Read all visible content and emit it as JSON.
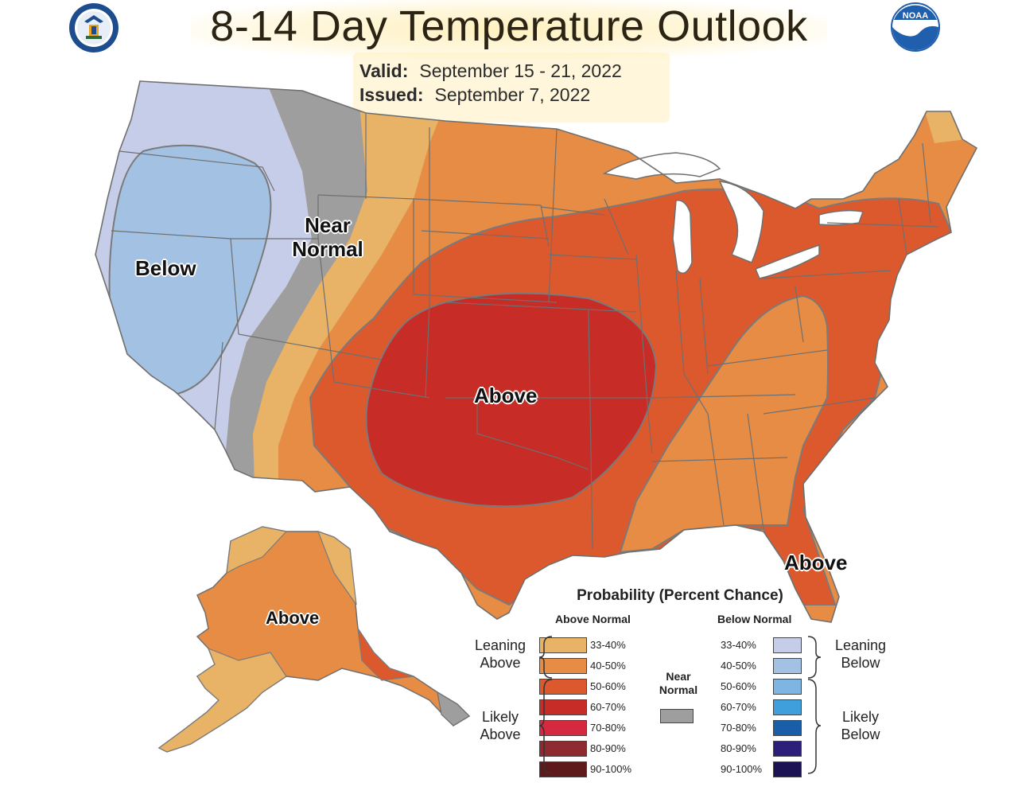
{
  "header": {
    "title": "8-14 Day Temperature Outlook",
    "valid_label": "Valid:",
    "valid_value": "September 15 - 21, 2022",
    "issued_label": "Issued:",
    "issued_value": "September 7, 2022",
    "logo_left": "commerce-seal-logo",
    "logo_right": "noaa-logo",
    "noaa_text": "NOAA"
  },
  "map": {
    "labels": {
      "below": "Below",
      "near_normal_1": "Near",
      "near_normal_2": "Normal",
      "above_center": "Above",
      "above_florida": "Above",
      "above_alaska": "Above"
    }
  },
  "colors": {
    "above_33_40": "#e8b367",
    "above_40_50": "#e68c45",
    "above_50_60": "#dc592e",
    "above_60_70": "#c72c27",
    "above_70_80": "#d4293f",
    "above_80_90": "#8e2b30",
    "above_90_100": "#5e1a1a",
    "near_normal": "#9e9e9e",
    "below_33_40": "#c5cde9",
    "below_40_50": "#a3c1e2",
    "below_50_60": "#7fb5e3",
    "below_60_70": "#3f9fdd",
    "below_70_80": "#1a5da8",
    "below_80_90": "#2c1f7a",
    "below_90_100": "#1b1353",
    "noaa_blue": "#1f5fae",
    "state_line": "#6f6f6f",
    "contour_line": "#7a7a7a"
  },
  "legend": {
    "title": "Probability (Percent Chance)",
    "above_header": "Above Normal",
    "below_header": "Below Normal",
    "near_normal_1": "Near",
    "near_normal_2": "Normal",
    "leaning_above_1": "Leaning",
    "leaning_above_2": "Above",
    "likely_above_1": "Likely",
    "likely_above_2": "Above",
    "leaning_below_1": "Leaning",
    "leaning_below_2": "Below",
    "likely_below_1": "Likely",
    "likely_below_2": "Below",
    "above_rows": [
      "33-40%",
      "40-50%",
      "50-60%",
      "60-70%",
      "70-80%",
      "80-90%",
      "90-100%"
    ],
    "below_rows": [
      "33-40%",
      "40-50%",
      "50-60%",
      "60-70%",
      "70-80%",
      "80-90%",
      "90-100%"
    ]
  }
}
